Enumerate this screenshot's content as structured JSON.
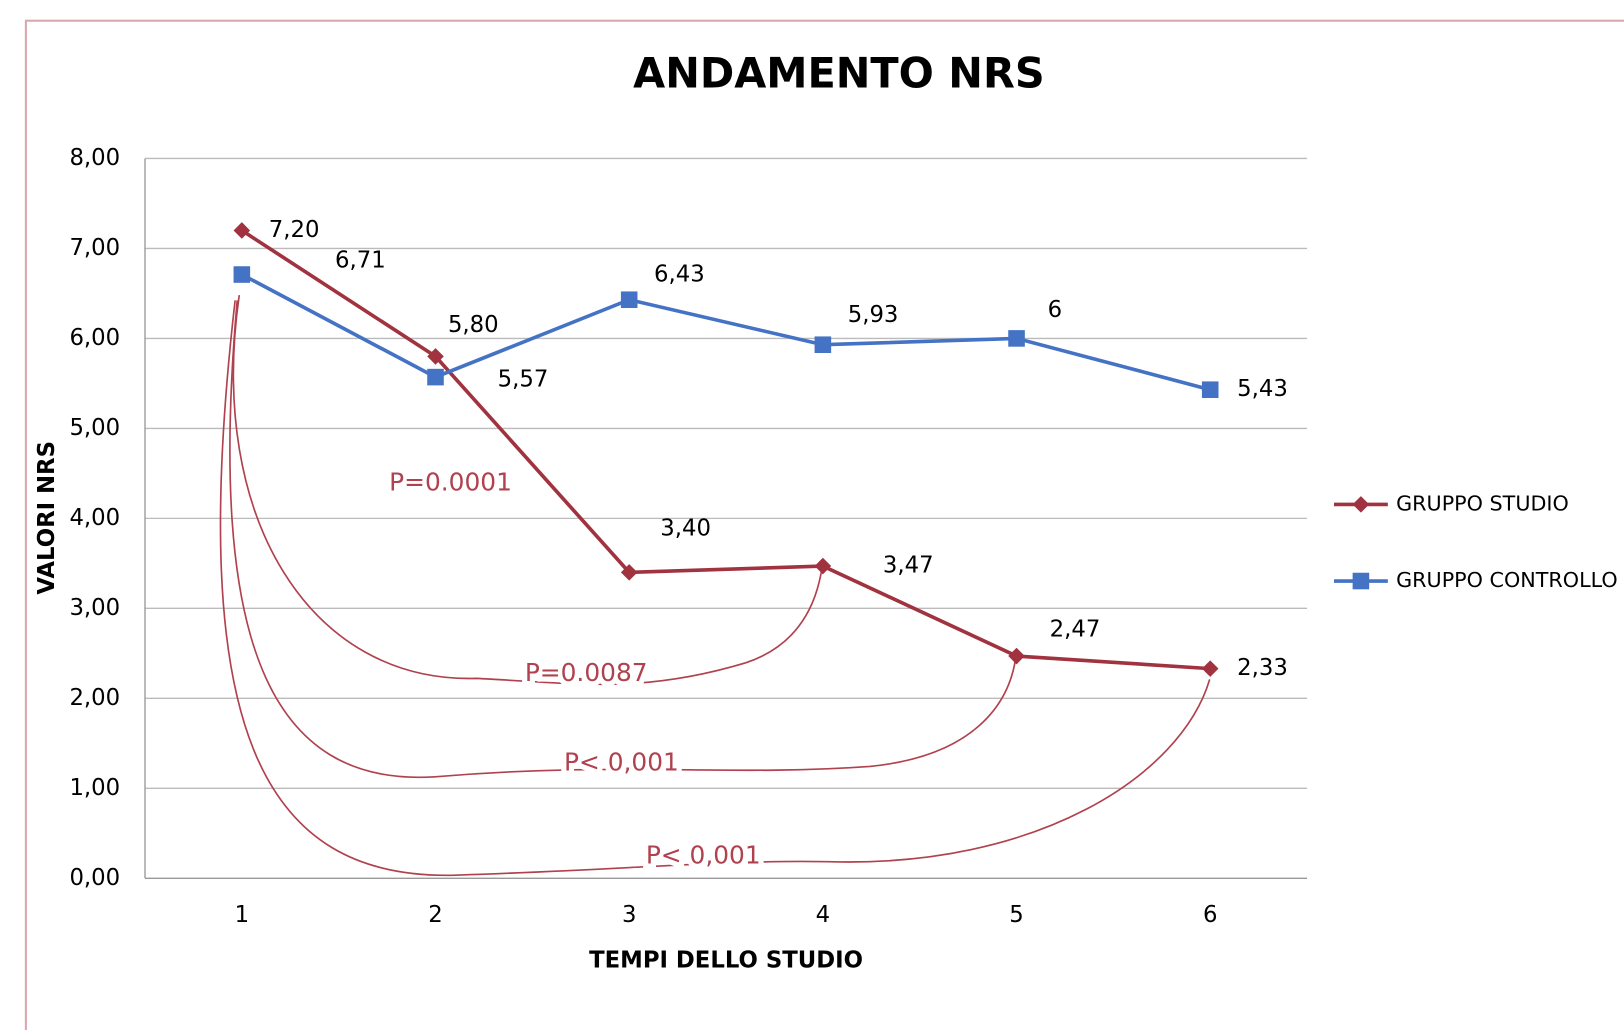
{
  "chart_data": {
    "type": "line",
    "title": "ANDAMENTO NRS",
    "x_label": "TEMPI DELLO STUDIO",
    "y_label": "VALORI NRS",
    "categories": [
      "1",
      "2",
      "3",
      "4",
      "5",
      "6"
    ],
    "series": [
      {
        "name": "GRUPPO STUDIO",
        "color": "#a1323f",
        "marker": "diamond",
        "values": [
          7.2,
          5.8,
          3.4,
          3.47,
          2.47,
          2.33
        ],
        "value_labels": [
          "7,20",
          "5,80",
          "3,40",
          "3,47",
          "2,47",
          "2,33"
        ]
      },
      {
        "name": "GRUPPO CONTROLLO",
        "color": "#4472c4",
        "marker": "square",
        "values": [
          6.71,
          5.57,
          6.43,
          5.93,
          6,
          5.43
        ],
        "value_labels": [
          "6,71",
          "5,57",
          "6,43",
          "5,93",
          "6",
          "5,43"
        ]
      }
    ],
    "ylim": [
      0,
      8
    ],
    "yticks": [
      {
        "value": 0,
        "label": "0,00"
      },
      {
        "value": 1,
        "label": "1,00"
      },
      {
        "value": 2,
        "label": "2,00"
      },
      {
        "value": 3,
        "label": "3,00"
      },
      {
        "value": 4,
        "label": "4,00"
      },
      {
        "value": 5,
        "label": "5,00"
      },
      {
        "value": 6,
        "label": "6,00"
      },
      {
        "value": 7,
        "label": "7,00"
      },
      {
        "value": 8,
        "label": "8,00"
      }
    ],
    "grid": true,
    "legend": "right",
    "annotations": [
      "P=0.0001",
      "P=0.0087",
      "P< 0,001",
      "P< 0,001"
    ]
  }
}
